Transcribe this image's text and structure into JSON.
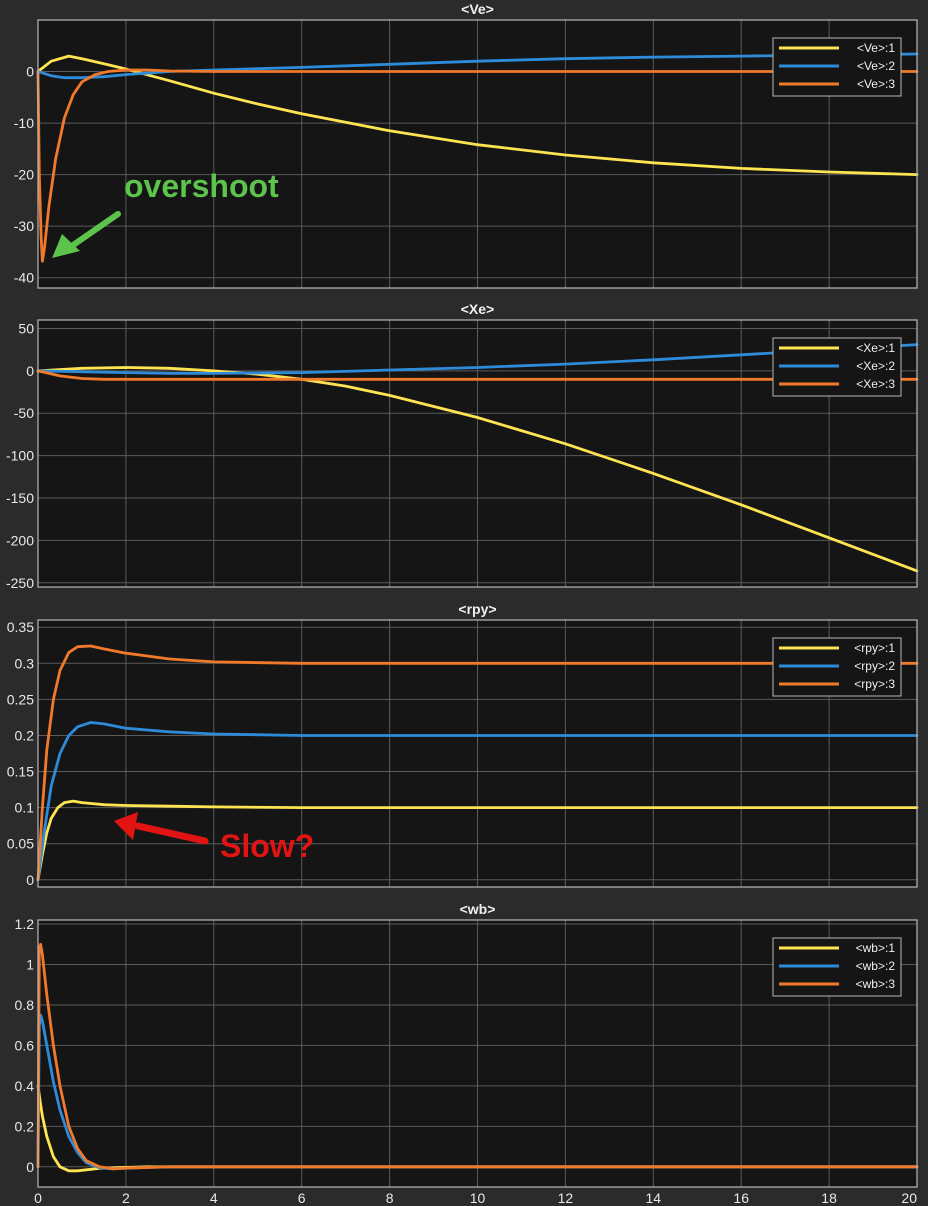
{
  "colors": {
    "s1": "#ffe452",
    "s2": "#2e8bd9",
    "s3": "#f07a2a",
    "bg": "#151515",
    "grid": "#5a5a5a",
    "frame": "#b8b8b8"
  },
  "chart_data": [
    {
      "type": "line",
      "title": "<Ve>",
      "xlim": [
        0,
        20
      ],
      "ylim": [
        -42,
        10
      ],
      "xticks": [
        0,
        2,
        4,
        6,
        8,
        10,
        12,
        14,
        16,
        18,
        20
      ],
      "yticks": [
        0,
        -10,
        -20,
        -30,
        -40
      ],
      "legend_position": "top-right",
      "series": [
        {
          "name": "<Ve>:1",
          "x": [
            0,
            0.3,
            0.7,
            1,
            1.5,
            2,
            3,
            4,
            5,
            6,
            8,
            10,
            12,
            14,
            16,
            18,
            20
          ],
          "y": [
            0,
            2,
            3,
            2.5,
            1.5,
            0.5,
            -1.8,
            -4.2,
            -6.3,
            -8.2,
            -11.5,
            -14.2,
            -16.2,
            -17.7,
            -18.8,
            -19.5,
            -20
          ]
        },
        {
          "name": "<Ve>:2",
          "x": [
            0,
            0.3,
            0.6,
            1,
            1.5,
            2,
            2.5,
            3,
            4,
            6,
            8,
            10,
            12,
            14,
            16,
            18,
            20
          ],
          "y": [
            0,
            -0.8,
            -1.2,
            -1.2,
            -1,
            -0.6,
            -0.3,
            0,
            0.3,
            0.8,
            1.4,
            2,
            2.5,
            2.8,
            3,
            3.2,
            3.4
          ]
        },
        {
          "name": "<Ve>:3",
          "x": [
            0,
            0.03,
            0.07,
            0.1,
            0.15,
            0.25,
            0.4,
            0.6,
            0.8,
            1,
            1.3,
            1.6,
            2,
            2.5,
            3,
            4,
            6,
            10,
            20
          ],
          "y": [
            0,
            -20,
            -32,
            -36.8,
            -34,
            -26,
            -17,
            -9,
            -4.5,
            -2,
            -0.6,
            0,
            0.3,
            0.3,
            0.1,
            0,
            0,
            0,
            0
          ]
        }
      ]
    },
    {
      "type": "line",
      "title": "<Xe>",
      "xlim": [
        0,
        20
      ],
      "ylim": [
        -255,
        60
      ],
      "xticks": [
        0,
        2,
        4,
        6,
        8,
        10,
        12,
        14,
        16,
        18,
        20
      ],
      "yticks": [
        50,
        0,
        -50,
        -100,
        -150,
        -200,
        -250
      ],
      "legend_position": "top-right",
      "series": [
        {
          "name": "<Xe>:1",
          "x": [
            0,
            1,
            2,
            3,
            4,
            5,
            6,
            7,
            8,
            10,
            12,
            14,
            16,
            18,
            20
          ],
          "y": [
            0,
            3,
            4,
            3,
            0,
            -4,
            -10,
            -18,
            -29,
            -55,
            -86,
            -121,
            -158,
            -197,
            -236
          ]
        },
        {
          "name": "<Xe>:2",
          "x": [
            0,
            1,
            2,
            3,
            4,
            6,
            8,
            10,
            12,
            14,
            16,
            18,
            20
          ],
          "y": [
            0,
            -1,
            -2,
            -3,
            -3,
            -2,
            1,
            4,
            8,
            13,
            19,
            25,
            31
          ]
        },
        {
          "name": "<Xe>:3",
          "x": [
            0,
            0.5,
            1,
            1.5,
            2,
            3,
            5,
            10,
            20
          ],
          "y": [
            0,
            -6,
            -9,
            -10,
            -10,
            -10,
            -10,
            -10,
            -10
          ]
        }
      ]
    },
    {
      "type": "line",
      "title": "<rpy>",
      "xlim": [
        0,
        20
      ],
      "ylim": [
        -0.01,
        0.36
      ],
      "xticks": [
        0,
        2,
        4,
        6,
        8,
        10,
        12,
        14,
        16,
        18,
        20
      ],
      "yticks": [
        0.35,
        0.3,
        0.25,
        0.2,
        0.15,
        0.1,
        0.05,
        0
      ],
      "legend_position": "top-right",
      "series": [
        {
          "name": "<rpy>:1",
          "x": [
            0,
            0.1,
            0.2,
            0.3,
            0.45,
            0.6,
            0.8,
            1,
            1.5,
            2,
            3,
            4,
            6,
            10,
            20
          ],
          "y": [
            0,
            0.035,
            0.065,
            0.085,
            0.1,
            0.107,
            0.109,
            0.107,
            0.104,
            0.103,
            0.102,
            0.101,
            0.1,
            0.1,
            0.1
          ]
        },
        {
          "name": "<rpy>:2",
          "x": [
            0,
            0.15,
            0.3,
            0.5,
            0.7,
            0.9,
            1.2,
            1.5,
            2,
            3,
            4,
            6,
            10,
            20
          ],
          "y": [
            0,
            0.07,
            0.13,
            0.175,
            0.2,
            0.212,
            0.218,
            0.216,
            0.21,
            0.205,
            0.202,
            0.2,
            0.2,
            0.2
          ]
        },
        {
          "name": "<rpy>:3",
          "x": [
            0,
            0.1,
            0.2,
            0.35,
            0.5,
            0.7,
            0.9,
            1.2,
            1.5,
            2,
            3,
            4,
            6,
            10,
            20
          ],
          "y": [
            0,
            0.1,
            0.18,
            0.25,
            0.29,
            0.315,
            0.323,
            0.324,
            0.32,
            0.314,
            0.306,
            0.302,
            0.3,
            0.3,
            0.3
          ]
        }
      ]
    },
    {
      "type": "line",
      "title": "<wb>",
      "xlim": [
        0,
        20
      ],
      "ylim": [
        -0.1,
        1.22
      ],
      "xticks": [
        0,
        2,
        4,
        6,
        8,
        10,
        12,
        14,
        16,
        18,
        20
      ],
      "yticks": [
        1.2,
        1,
        0.8,
        0.6,
        0.4,
        0.2,
        0
      ],
      "legend_position": "top-right",
      "series": [
        {
          "name": "<wb>:1",
          "x": [
            0,
            0.02,
            0.05,
            0.1,
            0.2,
            0.35,
            0.5,
            0.7,
            0.9,
            1.1,
            1.4,
            1.8,
            2.5,
            4,
            20
          ],
          "y": [
            0.4,
            0.37,
            0.32,
            0.25,
            0.15,
            0.05,
            0,
            -0.02,
            -0.02,
            -0.015,
            -0.008,
            -0.004,
            0,
            0,
            0
          ]
        },
        {
          "name": "<wb>:2",
          "x": [
            0,
            0.03,
            0.06,
            0.1,
            0.2,
            0.35,
            0.5,
            0.7,
            0.9,
            1.1,
            1.4,
            1.7,
            2.2,
            3,
            20
          ],
          "y": [
            0,
            0.7,
            0.75,
            0.72,
            0.6,
            0.42,
            0.28,
            0.15,
            0.07,
            0.02,
            -0.005,
            -0.01,
            -0.005,
            0,
            0
          ]
        },
        {
          "name": "<wb>:3",
          "x": [
            0,
            0.03,
            0.06,
            0.1,
            0.2,
            0.35,
            0.5,
            0.7,
            0.9,
            1.1,
            1.4,
            1.7,
            2.2,
            3,
            20
          ],
          "y": [
            0,
            1.08,
            1.1,
            1.05,
            0.85,
            0.6,
            0.4,
            0.2,
            0.09,
            0.03,
            0,
            -0.01,
            -0.005,
            0,
            0
          ]
        }
      ]
    }
  ],
  "annotations": {
    "overshoot": {
      "text": "overshoot",
      "color": "#5cc34b"
    },
    "slow": {
      "text": "Slow?",
      "color": "#e21313"
    }
  }
}
